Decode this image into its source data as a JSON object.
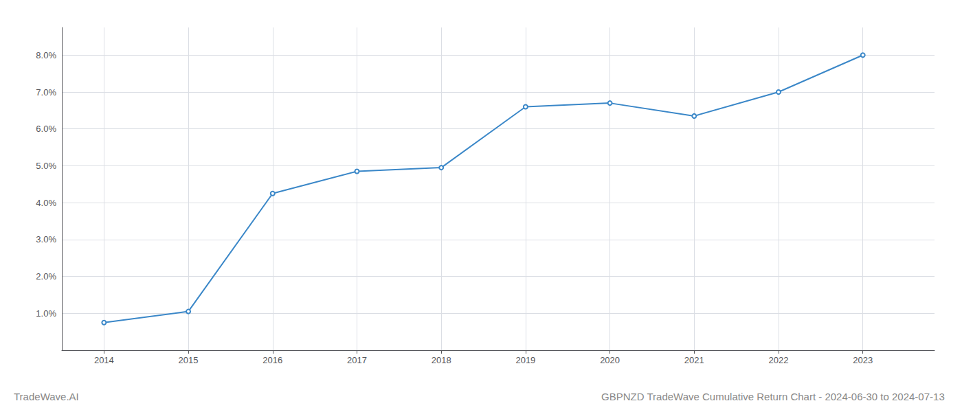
{
  "chart_data": {
    "type": "line",
    "title": "GBPNZD TradeWave Cumulative Return Chart - 2024-06-30 to 2024-07-13",
    "annotations": [
      "TradeWave.AI"
    ],
    "x": [
      2014,
      2015,
      2016,
      2017,
      2018,
      2019,
      2020,
      2021,
      2022,
      2023
    ],
    "values": [
      0.0075,
      0.0105,
      0.0425,
      0.0485,
      0.0495,
      0.066,
      0.067,
      0.0635,
      0.07,
      0.08
    ],
    "color": "#3a87c8",
    "xlim": [
      2013.5,
      2023.85
    ],
    "xticks": [
      2014,
      2015,
      2016,
      2017,
      2018,
      2019,
      2020,
      2021,
      2022,
      2023
    ],
    "ylim": [
      0.0,
      0.0875
    ],
    "yticks": [
      {
        "value": 0.01,
        "label": "1.0%"
      },
      {
        "value": 0.02,
        "label": "2.0%"
      },
      {
        "value": 0.03,
        "label": "3.0%"
      },
      {
        "value": 0.04,
        "label": "4.0%"
      },
      {
        "value": 0.05,
        "label": "5.0%"
      },
      {
        "value": 0.06,
        "label": "6.0%"
      },
      {
        "value": 0.07,
        "label": "7.0%"
      },
      {
        "value": 0.08,
        "label": "8.0%"
      }
    ],
    "grid": true
  }
}
